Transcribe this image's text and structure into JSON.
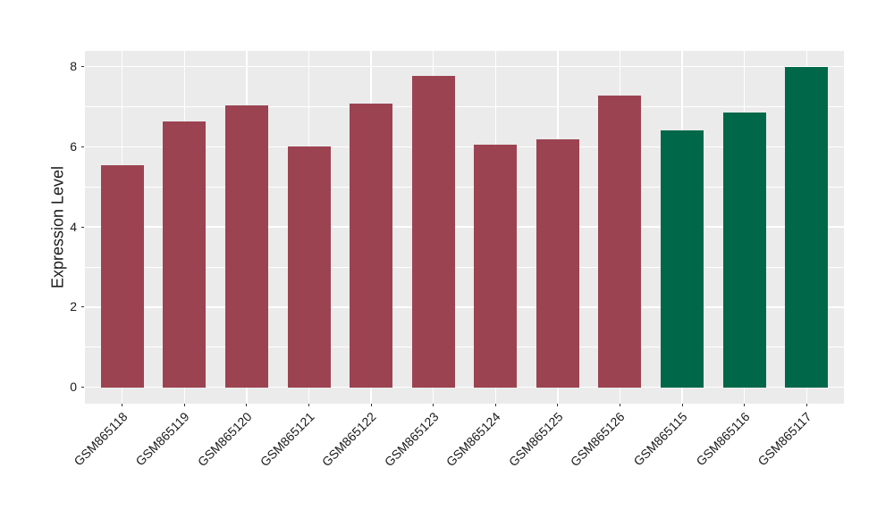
{
  "chart_data": {
    "type": "bar",
    "title": "",
    "xlabel": "",
    "ylabel": "Expression Level",
    "categories": [
      "GSM865118",
      "GSM865119",
      "GSM865120",
      "GSM865121",
      "GSM865122",
      "GSM865123",
      "GSM865124",
      "GSM865125",
      "GSM865126",
      "GSM865115",
      "GSM865116",
      "GSM865117"
    ],
    "values": [
      5.53,
      6.63,
      7.04,
      6.01,
      7.08,
      7.76,
      6.04,
      6.18,
      7.27,
      6.41,
      6.86,
      7.99
    ],
    "groups": [
      "red",
      "red",
      "red",
      "red",
      "red",
      "red",
      "red",
      "red",
      "red",
      "green",
      "green",
      "green"
    ],
    "group_colors": {
      "red": "#9C4351",
      "green": "#006848"
    },
    "y_ticks": [
      0,
      2,
      4,
      6,
      8
    ],
    "y_tick_labels": [
      "0",
      "2",
      "4",
      "6",
      "8"
    ],
    "y_minor_ticks": [
      1,
      3,
      5,
      7
    ],
    "ylim": [
      -0.41,
      8.39
    ],
    "grid": "on",
    "legend_position": "none",
    "colors": {
      "panel_bg": "#EBEBEB",
      "grid": "#FFFFFF",
      "text": "#1A1A1A",
      "tick_mark": "#333333",
      "page_bg": "#FFFFFF"
    }
  }
}
